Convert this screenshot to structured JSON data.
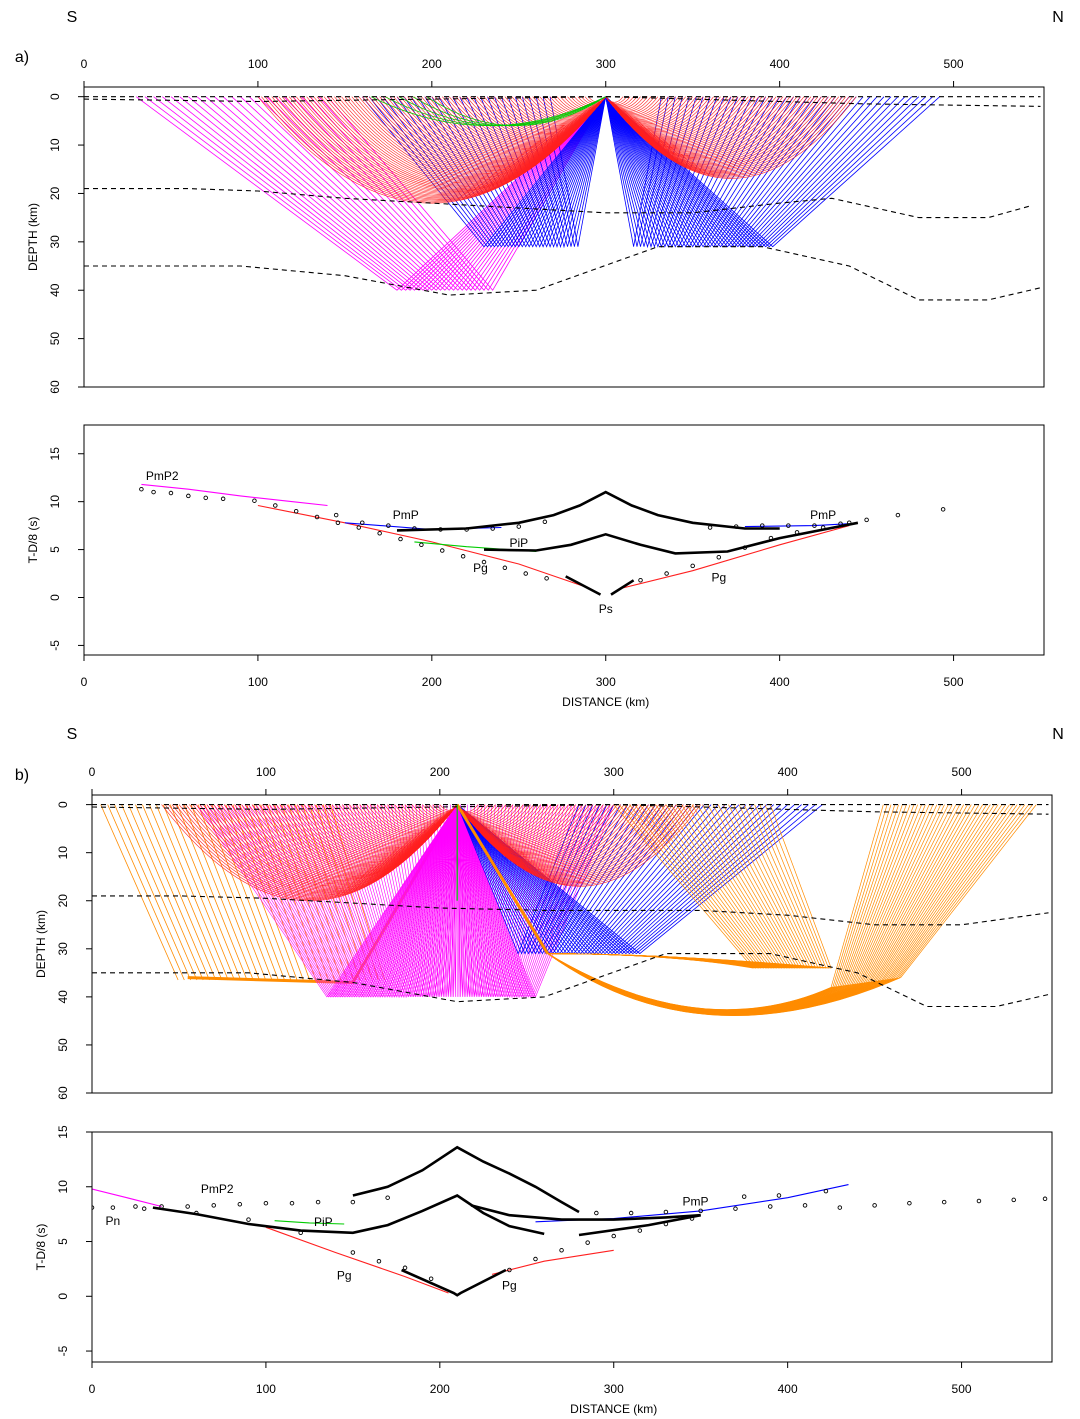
{
  "chart_data": [
    {
      "type": "ray",
      "panel_label": "a)",
      "left_label": "S",
      "right_label": "N",
      "ylabel": "DEPTH (km)",
      "xlim": [
        0,
        552
      ],
      "ylim": [
        -2,
        60
      ],
      "y_inverted": true,
      "xticks": [
        0,
        100,
        200,
        300,
        400,
        500
      ],
      "yticks": [
        0,
        10,
        20,
        30,
        40,
        50,
        60
      ],
      "x_axis_position": "top",
      "series": [
        {
          "color": "#000000",
          "style": "dashed",
          "x": [
            0,
            550
          ],
          "y": [
            0,
            0
          ]
        },
        {
          "color": "#000000",
          "style": "dashed",
          "x": [
            0,
            100,
            200,
            300,
            400,
            450,
            550
          ],
          "y": [
            0.5,
            1,
            0.5,
            0,
            1,
            1.5,
            2
          ]
        },
        {
          "color": "#000000",
          "style": "dashed",
          "x": [
            0,
            60,
            100,
            150,
            200,
            250,
            300,
            350,
            400,
            430,
            480,
            520,
            545
          ],
          "y": [
            19,
            19,
            19.5,
            21,
            22,
            23,
            24,
            24,
            22,
            21,
            25,
            25,
            22.5
          ]
        },
        {
          "color": "#000000",
          "style": "dashed",
          "x": [
            0,
            40,
            90,
            150,
            210,
            260,
            330,
            390,
            440,
            480,
            520,
            550
          ],
          "y": [
            35,
            35,
            35,
            37,
            41,
            40,
            31,
            31,
            35,
            42,
            42,
            39.5
          ]
        }
      ]
    },
    {
      "type": "line",
      "ylabel": "T-D/8 (s)",
      "xlabel": "DISTANCE (km)",
      "xlim": [
        0,
        552
      ],
      "ylim": [
        -6,
        18
      ],
      "xticks": [
        0,
        100,
        200,
        300,
        400,
        500
      ],
      "yticks": [
        -5,
        0,
        5,
        10,
        15
      ],
      "x_axis_position": "bottom",
      "annotations": [
        "PmP2",
        "PmP",
        "PiP",
        "Pg",
        "Ps",
        "Pg",
        "PmP"
      ],
      "series": [
        {
          "color": "#ff00ff",
          "style": "line",
          "x": [
            33,
            60,
            90,
            120,
            140
          ],
          "y": [
            11.8,
            11.3,
            10.6,
            10,
            9.6
          ]
        },
        {
          "color": "#ff2020",
          "style": "line",
          "x": [
            100,
            150,
            200,
            250,
            290
          ],
          "y": [
            9.6,
            7.8,
            5.8,
            3.5,
            1
          ]
        },
        {
          "color": "#ff2020",
          "style": "line",
          "x": [
            310,
            350,
            400,
            440
          ],
          "y": [
            1,
            2.8,
            5.5,
            7.5
          ]
        },
        {
          "color": "#00cc00",
          "style": "line",
          "x": [
            190,
            220,
            260
          ],
          "y": [
            5.8,
            5.3,
            4.8
          ]
        },
        {
          "color": "#0000ff",
          "style": "line",
          "x": [
            150,
            200,
            240
          ],
          "y": [
            7.8,
            7.1,
            7.3
          ]
        },
        {
          "color": "#0000ff",
          "style": "line",
          "x": [
            380,
            420,
            440
          ],
          "y": [
            7.4,
            7.5,
            7.7
          ]
        },
        {
          "color": "#000000",
          "style": "thick",
          "x": [
            180,
            220,
            250,
            270,
            285,
            300,
            315,
            330,
            350,
            380,
            400
          ],
          "y": [
            7,
            7.2,
            7.8,
            8.6,
            9.6,
            11,
            9.6,
            8.6,
            7.8,
            7.2,
            7.2
          ]
        },
        {
          "color": "#000000",
          "style": "thick",
          "x": [
            230,
            260,
            280,
            300,
            320,
            340,
            370,
            400,
            445
          ],
          "y": [
            5,
            4.9,
            5.5,
            6.6,
            5.5,
            4.6,
            4.8,
            6.2,
            7.8
          ]
        },
        {
          "color": "#000000",
          "style": "thick",
          "x": [
            277,
            297,
            300,
            303,
            316
          ],
          "y": [
            2.2,
            0.3,
            null,
            0.3,
            1.8
          ]
        },
        {
          "color": "#000000",
          "style": "dots",
          "x": [
            33,
            40,
            50,
            60,
            70,
            80,
            98,
            110,
            122,
            134,
            146,
            158,
            170,
            182,
            194,
            206,
            218,
            230,
            242,
            254,
            266
          ],
          "y": [
            11.3,
            11,
            10.9,
            10.6,
            10.4,
            10.3,
            10.1,
            9.6,
            9,
            8.4,
            7.8,
            7.3,
            6.7,
            6.1,
            5.5,
            4.9,
            4.3,
            3.7,
            3.1,
            2.5,
            2
          ]
        },
        {
          "color": "#000000",
          "style": "dots",
          "x": [
            145,
            160,
            175,
            190,
            205,
            220,
            235,
            250,
            265
          ],
          "y": [
            8.6,
            7.8,
            7.5,
            7.2,
            7.1,
            7.1,
            7.2,
            7.4,
            7.9
          ]
        },
        {
          "color": "#000000",
          "style": "dots",
          "x": [
            320,
            335,
            350,
            365,
            380,
            395,
            410,
            425,
            440,
            450,
            468,
            494
          ],
          "y": [
            1.8,
            2.5,
            3.3,
            4.2,
            5.2,
            6.2,
            6.8,
            7.3,
            7.8,
            8.1,
            8.6,
            9.2
          ]
        },
        {
          "color": "#000000",
          "style": "dots",
          "x": [
            360,
            375,
            390,
            405,
            420,
            435
          ],
          "y": [
            7.3,
            7.4,
            7.5,
            7.5,
            7.5,
            7.7
          ]
        }
      ]
    },
    {
      "type": "ray",
      "panel_label": "b)",
      "left_label": "S",
      "right_label": "N",
      "ylabel": "DEPTH (km)",
      "xlim": [
        0,
        552
      ],
      "ylim": [
        -2,
        60
      ],
      "y_inverted": true,
      "xticks": [
        0,
        100,
        200,
        300,
        400,
        500
      ],
      "yticks": [
        0,
        10,
        20,
        30,
        40,
        50,
        60
      ],
      "x_axis_position": "top",
      "series": [
        {
          "color": "#000000",
          "style": "dashed",
          "x": [
            0,
            550
          ],
          "y": [
            0,
            0
          ]
        },
        {
          "color": "#000000",
          "style": "dashed",
          "x": [
            0,
            100,
            200,
            300,
            400,
            450,
            550
          ],
          "y": [
            0.5,
            1,
            0.5,
            0,
            1,
            1.5,
            2
          ]
        },
        {
          "color": "#000000",
          "style": "dashed",
          "x": [
            0,
            50,
            100,
            150,
            200,
            260,
            300,
            350,
            400,
            450,
            500,
            550
          ],
          "y": [
            19,
            19,
            19.5,
            20.5,
            21.5,
            22,
            22,
            22,
            23,
            25,
            25,
            22.5
          ]
        },
        {
          "color": "#000000",
          "style": "dashed",
          "x": [
            0,
            40,
            90,
            150,
            210,
            260,
            330,
            390,
            440,
            480,
            520,
            550
          ],
          "y": [
            35,
            35,
            35,
            37,
            41,
            40,
            31,
            31,
            35,
            42,
            42,
            39.5
          ]
        },
        {
          "color": "#000000",
          "style": "dashed",
          "x": [
            0,
            550
          ],
          "y": [
            60,
            60
          ]
        }
      ]
    },
    {
      "type": "line",
      "ylabel": "T-D/8 (s)",
      "xlabel": "DISTANCE (km)",
      "xlim": [
        0,
        552
      ],
      "ylim": [
        -6,
        15
      ],
      "xticks": [
        0,
        100,
        200,
        300,
        400,
        500
      ],
      "yticks": [
        -5,
        0,
        5,
        10,
        15
      ],
      "x_axis_position": "bottom",
      "annotations": [
        "PmP2",
        "PiP",
        "Pn",
        "Pg",
        "Pg",
        "PmP"
      ],
      "series": [
        {
          "color": "#ff00ff",
          "style": "line",
          "x": [
            0,
            20,
            40
          ],
          "y": [
            9.8,
            9,
            8.2
          ]
        },
        {
          "color": "#00cc00",
          "style": "line",
          "x": [
            105,
            125,
            145
          ],
          "y": [
            6.9,
            6.7,
            6.6
          ]
        },
        {
          "color": "#0000ff",
          "style": "line",
          "x": [
            255,
            300,
            350,
            400,
            435
          ],
          "y": [
            6.8,
            7.1,
            7.8,
            9,
            10.2
          ]
        },
        {
          "color": "#ff2020",
          "style": "line",
          "x": [
            100,
            140,
            180,
            205
          ],
          "y": [
            6.3,
            4,
            1.8,
            0.3
          ]
        },
        {
          "color": "#ff2020",
          "style": "line",
          "x": [
            230,
            260,
            300
          ],
          "y": [
            2,
            3.2,
            4.2
          ]
        },
        {
          "color": "#000000",
          "style": "thick",
          "x": [
            150,
            170,
            190,
            210,
            225,
            240,
            255,
            270,
            280
          ],
          "y": [
            9.2,
            10,
            11.5,
            13.6,
            12.3,
            11.2,
            10,
            8.6,
            7.7
          ]
        },
        {
          "color": "#000000",
          "style": "thick",
          "x": [
            35,
            60,
            90,
            120,
            150,
            170,
            190,
            210,
            225,
            240,
            260
          ],
          "y": [
            8.1,
            7.5,
            6.6,
            6,
            5.8,
            6.5,
            7.8,
            9.2,
            7.6,
            6.4,
            5.7
          ]
        },
        {
          "color": "#000000",
          "style": "thick",
          "x": [
            218,
            240,
            270,
            300,
            330,
            350
          ],
          "y": [
            8.3,
            7.4,
            7,
            7,
            7.2,
            7.4
          ]
        },
        {
          "color": "#000000",
          "style": "thick",
          "x": [
            280,
            320,
            350
          ],
          "y": [
            5.6,
            6.5,
            7.4
          ]
        },
        {
          "color": "#000000",
          "style": "thick",
          "x": [
            178,
            208,
            210,
            212,
            238
          ],
          "y": [
            2.4,
            0.3,
            0.1,
            0.3,
            2.4
          ]
        },
        {
          "color": "#000000",
          "style": "dots",
          "x": [
            0,
            12,
            25,
            40,
            55,
            70,
            85,
            100,
            115,
            130,
            150,
            170
          ],
          "y": [
            8.1,
            8.1,
            8.2,
            8.2,
            8.2,
            8.3,
            8.4,
            8.5,
            8.5,
            8.6,
            8.6,
            9
          ]
        },
        {
          "color": "#000000",
          "style": "dots",
          "x": [
            30,
            60,
            90,
            120,
            150,
            165,
            180,
            195
          ],
          "y": [
            8,
            7.6,
            7,
            5.8,
            4,
            3.2,
            2.6,
            1.6
          ]
        },
        {
          "color": "#000000",
          "style": "dots",
          "x": [
            240,
            255,
            270,
            285,
            300,
            315,
            330,
            345
          ],
          "y": [
            2.4,
            3.4,
            4.2,
            4.9,
            5.5,
            6,
            6.6,
            7.1
          ]
        },
        {
          "color": "#000000",
          "style": "dots",
          "x": [
            290,
            310,
            330,
            350,
            370,
            390,
            410,
            430,
            450,
            470,
            490,
            510,
            530,
            548
          ],
          "y": [
            7.6,
            7.6,
            7.7,
            7.8,
            8,
            8.2,
            8.3,
            8.1,
            8.3,
            8.5,
            8.6,
            8.7,
            8.8,
            8.9
          ]
        },
        {
          "color": "#000000",
          "style": "dots",
          "x": [
            375,
            395,
            422
          ],
          "y": [
            9.1,
            9.2,
            9.6
          ]
        }
      ]
    }
  ]
}
